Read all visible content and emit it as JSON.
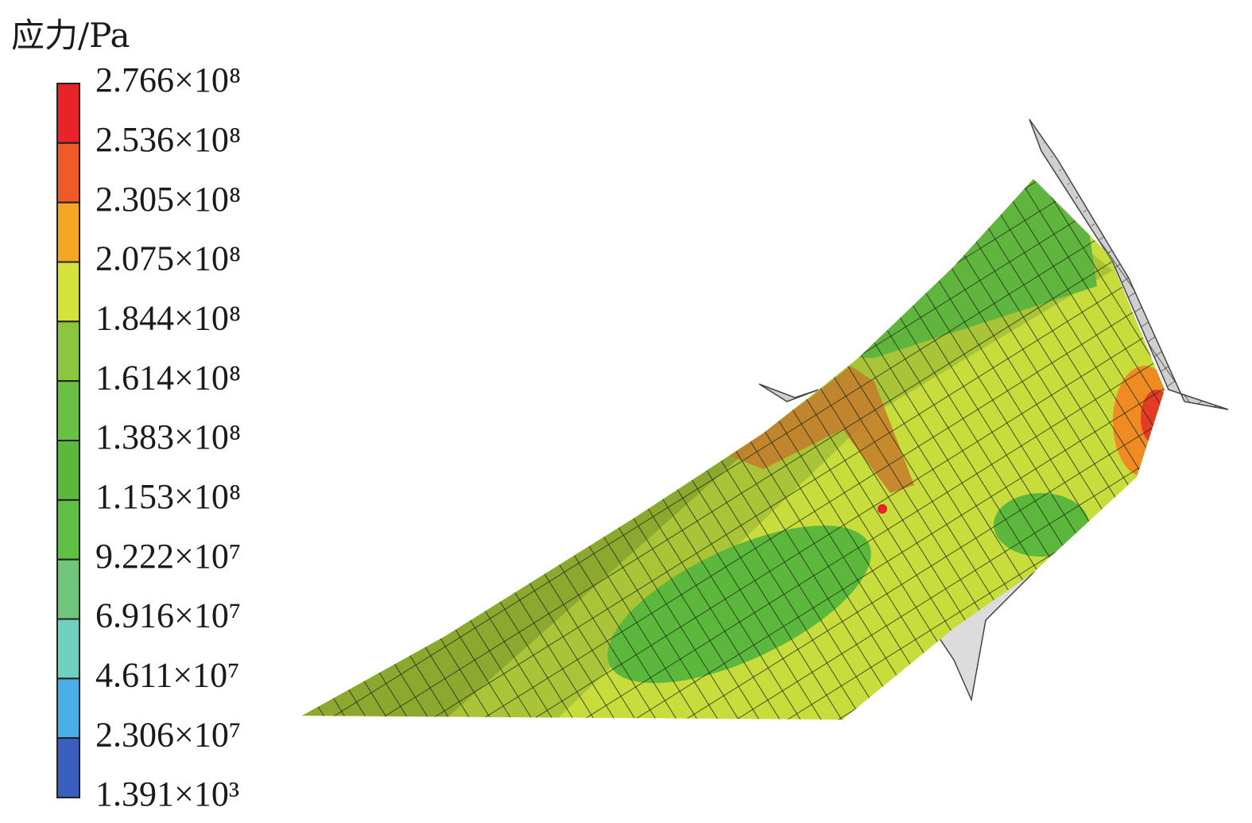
{
  "legend": {
    "title": "应力/Pa",
    "labels": [
      "2.766×10⁸",
      "2.536×10⁸",
      "2.305×10⁸",
      "2.075×10⁸",
      "1.844×10⁸",
      "1.614×10⁸",
      "1.383×10⁸",
      "1.153×10⁸",
      "9.222×10⁷",
      "6.916×10⁷",
      "4.611×10⁷",
      "2.306×10⁷",
      "1.391×10³"
    ],
    "colors": [
      "#e8232a",
      "#f05a28",
      "#f5a623",
      "#d4e23a",
      "#8cc63f",
      "#6abf45",
      "#5cb83c",
      "#5fbf44",
      "#6fc67a",
      "#6fd0c0",
      "#4aaee6",
      "#3a5fbf",
      "#2e4aa8"
    ]
  }
}
